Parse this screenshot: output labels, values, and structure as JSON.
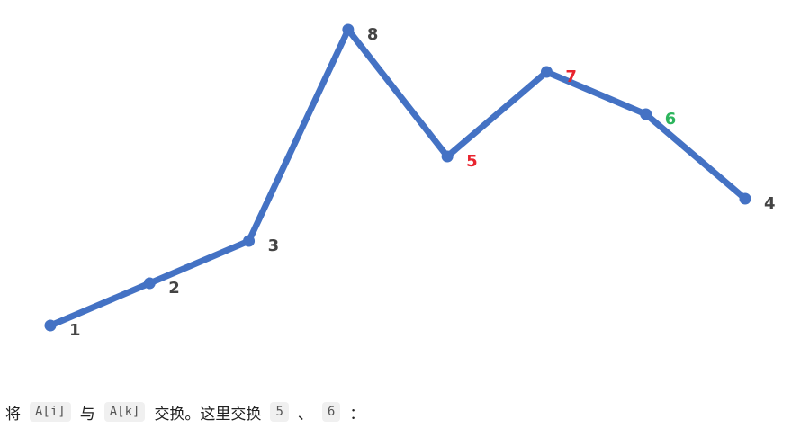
{
  "chart_data": {
    "type": "line",
    "series": [
      {
        "values": [
          1,
          2,
          3,
          8,
          5,
          7,
          6,
          4
        ],
        "labels": [
          "1",
          "2",
          "3",
          "8",
          "5",
          "7",
          "6",
          "4"
        ]
      }
    ],
    "line_color": "#4472c4",
    "label_colors": [
      "#444444",
      "#444444",
      "#444444",
      "#444444",
      "#e8242e",
      "#e8242e",
      "#2db55d",
      "#444444"
    ],
    "ylim": [
      1,
      8
    ],
    "grid": false,
    "legend": "none"
  },
  "caption": {
    "t1": "将",
    "code1": "A[i]",
    "t2": "与",
    "code2": "A[k]",
    "t3": "交换。这里交换",
    "code3": "5",
    "t4": "、",
    "code4": "6",
    "t5": "："
  }
}
